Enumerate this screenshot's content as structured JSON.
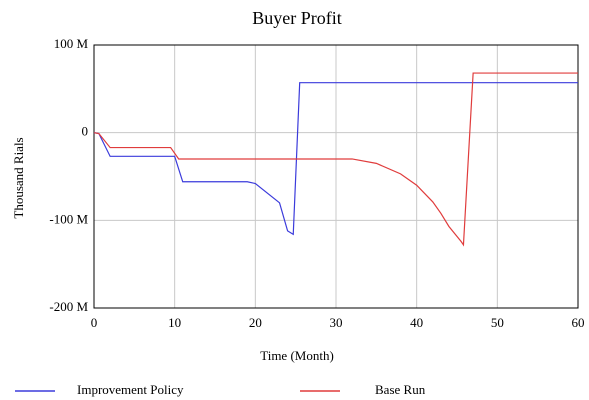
{
  "chart_data": {
    "type": "line",
    "title": "Buyer Profit",
    "xlabel": "Time (Month)",
    "ylabel": "Thousand Rials",
    "xlim": [
      0,
      60
    ],
    "xticks": [
      0,
      10,
      20,
      30,
      40,
      50,
      60
    ],
    "ylim": [
      -200000000,
      100000000
    ],
    "yticks": [
      {
        "value": -200000000,
        "label": "-200 M"
      },
      {
        "value": -100000000,
        "label": "-100 M"
      },
      0,
      {
        "value": 100000000,
        "label": "100 M"
      }
    ],
    "grid": true,
    "legend": "bottom",
    "series": [
      {
        "name": "Improvement Policy",
        "color": "#3b3bdb",
        "x": [
          0,
          0.6,
          2,
          10,
          11,
          19,
          20,
          23,
          24,
          24.7,
          25.5,
          60
        ],
        "values": [
          0,
          -1000000,
          -27000000,
          -27000000,
          -56000000,
          -56000000,
          -58000000,
          -80000000,
          -112000000,
          -116000000,
          57000000,
          57000000
        ]
      },
      {
        "name": "Base Run",
        "color": "#e03c3c",
        "x": [
          0,
          0.6,
          2,
          9.5,
          10.5,
          32,
          35,
          38,
          40,
          42,
          43,
          44,
          45.5,
          45.8,
          47,
          60
        ],
        "values": [
          0,
          -1000000,
          -17000000,
          -17000000,
          -30000000,
          -30000000,
          -35000000,
          -47000000,
          -60000000,
          -79000000,
          -92000000,
          -107000000,
          -124000000,
          -128000000,
          68000000,
          68000000
        ]
      }
    ]
  }
}
